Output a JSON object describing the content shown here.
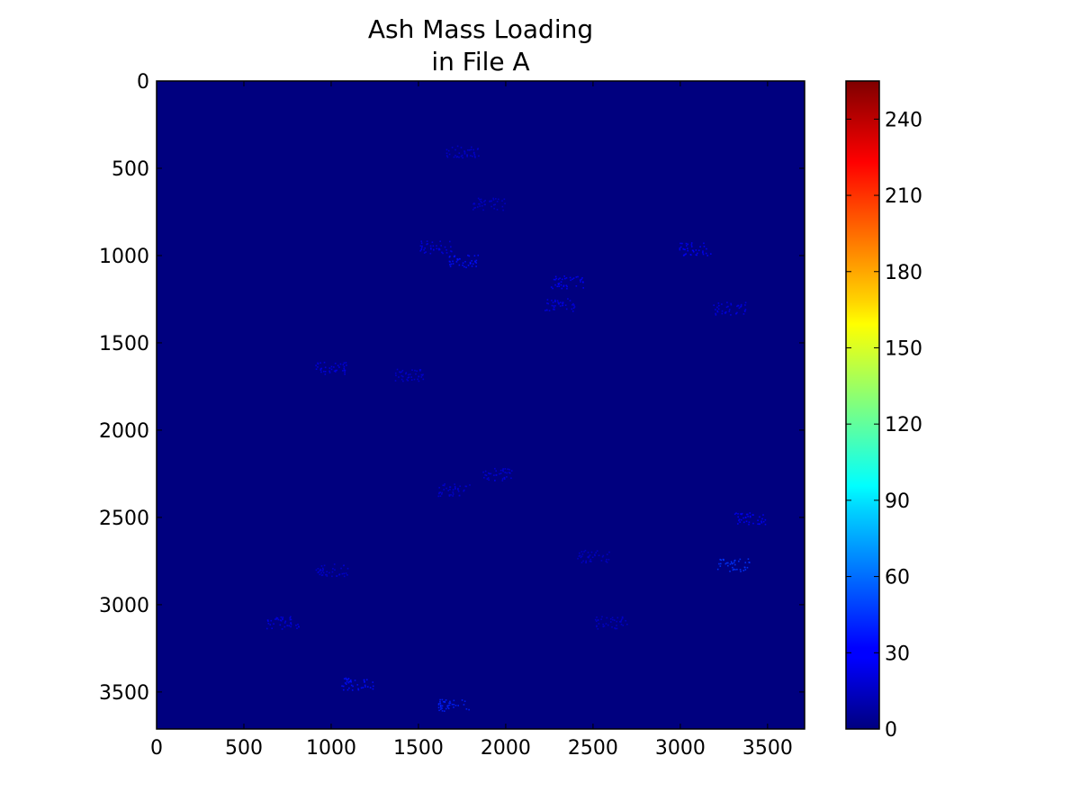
{
  "chart_data": {
    "type": "heatmap",
    "title": [
      "Ash Mass Loading",
      "in File A"
    ],
    "xlabel": "",
    "ylabel": "",
    "xlim": [
      0,
      3712
    ],
    "ylim": [
      3712,
      0
    ],
    "x_ticks": [
      0,
      500,
      1000,
      1500,
      2000,
      2500,
      3000,
      3500
    ],
    "y_ticks": [
      0,
      500,
      1000,
      1500,
      2000,
      2500,
      3000,
      3500
    ],
    "colormap": "jet",
    "colorbar": {
      "range": [
        0,
        255
      ],
      "ticks": [
        0,
        30,
        60,
        90,
        120,
        150,
        180,
        210,
        240
      ],
      "placement": "right"
    },
    "background_value": 0,
    "background_color": "#00007f",
    "grid": false,
    "features": [
      {
        "x": 1750,
        "y": 1030,
        "value": 35
      },
      {
        "x": 1600,
        "y": 950,
        "value": 25
      },
      {
        "x": 2350,
        "y": 1150,
        "value": 30
      },
      {
        "x": 2300,
        "y": 1280,
        "value": 25
      },
      {
        "x": 3080,
        "y": 960,
        "value": 30
      },
      {
        "x": 3280,
        "y": 1300,
        "value": 25
      },
      {
        "x": 1000,
        "y": 1640,
        "value": 25
      },
      {
        "x": 1450,
        "y": 1680,
        "value": 20
      },
      {
        "x": 1950,
        "y": 2250,
        "value": 22
      },
      {
        "x": 1700,
        "y": 2340,
        "value": 20
      },
      {
        "x": 3300,
        "y": 2770,
        "value": 45
      },
      {
        "x": 3400,
        "y": 2500,
        "value": 30
      },
      {
        "x": 1700,
        "y": 3570,
        "value": 40
      },
      {
        "x": 1150,
        "y": 3450,
        "value": 35
      },
      {
        "x": 1000,
        "y": 2800,
        "value": 20
      },
      {
        "x": 2500,
        "y": 2720,
        "value": 18
      },
      {
        "x": 2600,
        "y": 3100,
        "value": 18
      },
      {
        "x": 720,
        "y": 3100,
        "value": 25
      },
      {
        "x": 1750,
        "y": 400,
        "value": 20
      },
      {
        "x": 1900,
        "y": 700,
        "value": 18
      }
    ]
  }
}
